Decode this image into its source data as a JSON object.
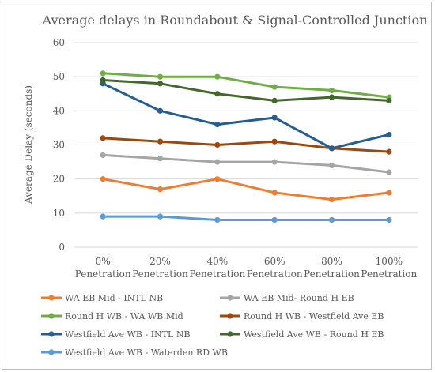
{
  "chart_data": {
    "type": "line",
    "title": "Average delays in Roundabout & Signal-Controlled Junction",
    "ylabel": "Average Delay (seconds)",
    "xlabel": "",
    "ylim": [
      0,
      60
    ],
    "yticks": [
      0,
      10,
      20,
      30,
      40,
      50,
      60
    ],
    "grid": "horizontal",
    "legend_position": "bottom",
    "categories": [
      [
        "0%",
        "Penetration"
      ],
      [
        "20%",
        "Penetration"
      ],
      [
        "40%",
        "Penetration"
      ],
      [
        "60%",
        "Penetration"
      ],
      [
        "80%",
        "Penetration"
      ],
      [
        "100%",
        "Penetration"
      ]
    ],
    "series": [
      {
        "name": "WA EB Mid - INTL NB",
        "color": "#ed7d31",
        "values": [
          20,
          17,
          20,
          16,
          14,
          16
        ]
      },
      {
        "name": "WA EB Mid- Round H EB",
        "color": "#a5a5a5",
        "values": [
          27,
          26,
          25,
          25,
          24,
          22
        ]
      },
      {
        "name": "Round H WB - WA WB Mid",
        "color": "#70ad47",
        "values": [
          51,
          50,
          50,
          47,
          46,
          44
        ]
      },
      {
        "name": "Round H WB - Westfield Ave EB",
        "color": "#9e480e",
        "values": [
          32,
          31,
          30,
          31,
          29,
          28
        ]
      },
      {
        "name": "Westfield Ave WB - INTL NB",
        "color": "#255e91",
        "values": [
          48,
          40,
          36,
          38,
          29,
          33
        ]
      },
      {
        "name": "Westfield Ave WB - Round H EB",
        "color": "#43682b",
        "values": [
          49,
          48,
          45,
          43,
          44,
          43
        ]
      },
      {
        "name": "Westfield Ave WB - Waterden RD WB",
        "color": "#5b9bd5",
        "values": [
          9,
          9,
          8,
          8,
          8,
          8
        ]
      }
    ]
  }
}
